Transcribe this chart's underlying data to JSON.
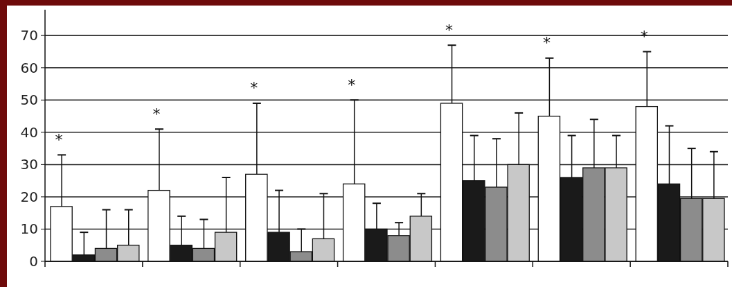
{
  "chart_data": {
    "type": "bar",
    "categories": [
      null,
      null,
      null,
      null,
      null,
      null,
      null
    ],
    "series": [
      {
        "color": "#ffffff",
        "values": [
          17,
          22,
          27,
          24,
          49,
          45,
          48
        ],
        "errors": [
          [
            17,
            33
          ],
          [
            22,
            41
          ],
          [
            27,
            49
          ],
          [
            24,
            50
          ],
          [
            49,
            67
          ],
          [
            45,
            63
          ],
          [
            48,
            65
          ]
        ]
      },
      {
        "color": "#1a1a1a",
        "values": [
          2,
          5,
          9,
          10,
          25,
          26,
          24
        ],
        "errors": [
          [
            2,
            9
          ],
          [
            5,
            14
          ],
          [
            9,
            22
          ],
          [
            10,
            18
          ],
          [
            25,
            39
          ],
          [
            26,
            39
          ],
          [
            24,
            42
          ]
        ]
      },
      {
        "color": "#8c8c8c",
        "values": [
          4,
          4,
          3,
          8,
          23,
          29,
          19.5
        ],
        "errors": [
          [
            4,
            16
          ],
          [
            4,
            13
          ],
          [
            3,
            10
          ],
          [
            8,
            12
          ],
          [
            23,
            38
          ],
          [
            29,
            44
          ],
          [
            19.5,
            35
          ]
        ]
      },
      {
        "color": "#c8c8c8",
        "values": [
          5,
          9,
          7,
          14,
          30,
          29,
          19.5
        ],
        "errors": [
          [
            5,
            16
          ],
          [
            9,
            26
          ],
          [
            7,
            21
          ],
          [
            14,
            21
          ],
          [
            30,
            46
          ],
          [
            29,
            39
          ],
          [
            19.5,
            34
          ]
        ]
      }
    ],
    "ylim": [
      0,
      78
    ],
    "yticks": [
      0,
      10,
      20,
      30,
      40,
      50,
      60,
      70
    ],
    "grid": "y",
    "annotations": [
      "*",
      "*",
      "*",
      "*",
      "*",
      "*",
      "*"
    ]
  }
}
